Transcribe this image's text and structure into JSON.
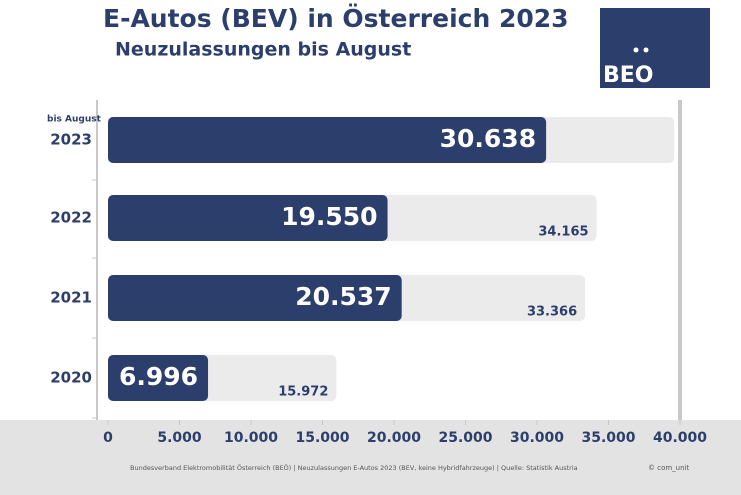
{
  "chart_data": {
    "type": "hbar",
    "title": "E-Autos (BEV) in Österreich 2023",
    "subtitle": "Neuzulassungen bis August",
    "logo": "BEO",
    "annotation": "bis August",
    "source": "Bundesverband Elektromobilität Österreich (BEÖ) | Neuzulassungen E-Autos 2023 (BEV, keine Hybridfahrzeuge) | Quelle: Statistik Austria",
    "credit": "© com_unit",
    "categories": [
      "2023",
      "2022",
      "2021",
      "2020"
    ],
    "series": [
      {
        "color": "#2c3e6b",
        "values": [
          30638,
          19550,
          20537,
          6996
        ],
        "value_labels": [
          "30.638",
          "19.550",
          "20.537",
          "6.996"
        ]
      },
      {
        "color": "#ebebeb",
        "values": [
          39600,
          34165,
          33366,
          15972
        ],
        "value_labels": [
          null,
          "34.165",
          "33.366",
          "15.972"
        ]
      }
    ],
    "xlim": [
      0,
      40000
    ],
    "xticks": [
      0,
      {
        "value": 5000,
        "label": "5.000"
      },
      {
        "value": 10000,
        "label": "10.000"
      },
      {
        "value": 15000,
        "label": "15.000"
      },
      {
        "value": 20000,
        "label": "20.000"
      },
      {
        "value": 25000,
        "label": "25.000"
      },
      {
        "value": 30000,
        "label": "30.000"
      },
      {
        "value": 35000,
        "label": "35.000"
      },
      {
        "value": 40000,
        "label": "40.000"
      }
    ]
  }
}
